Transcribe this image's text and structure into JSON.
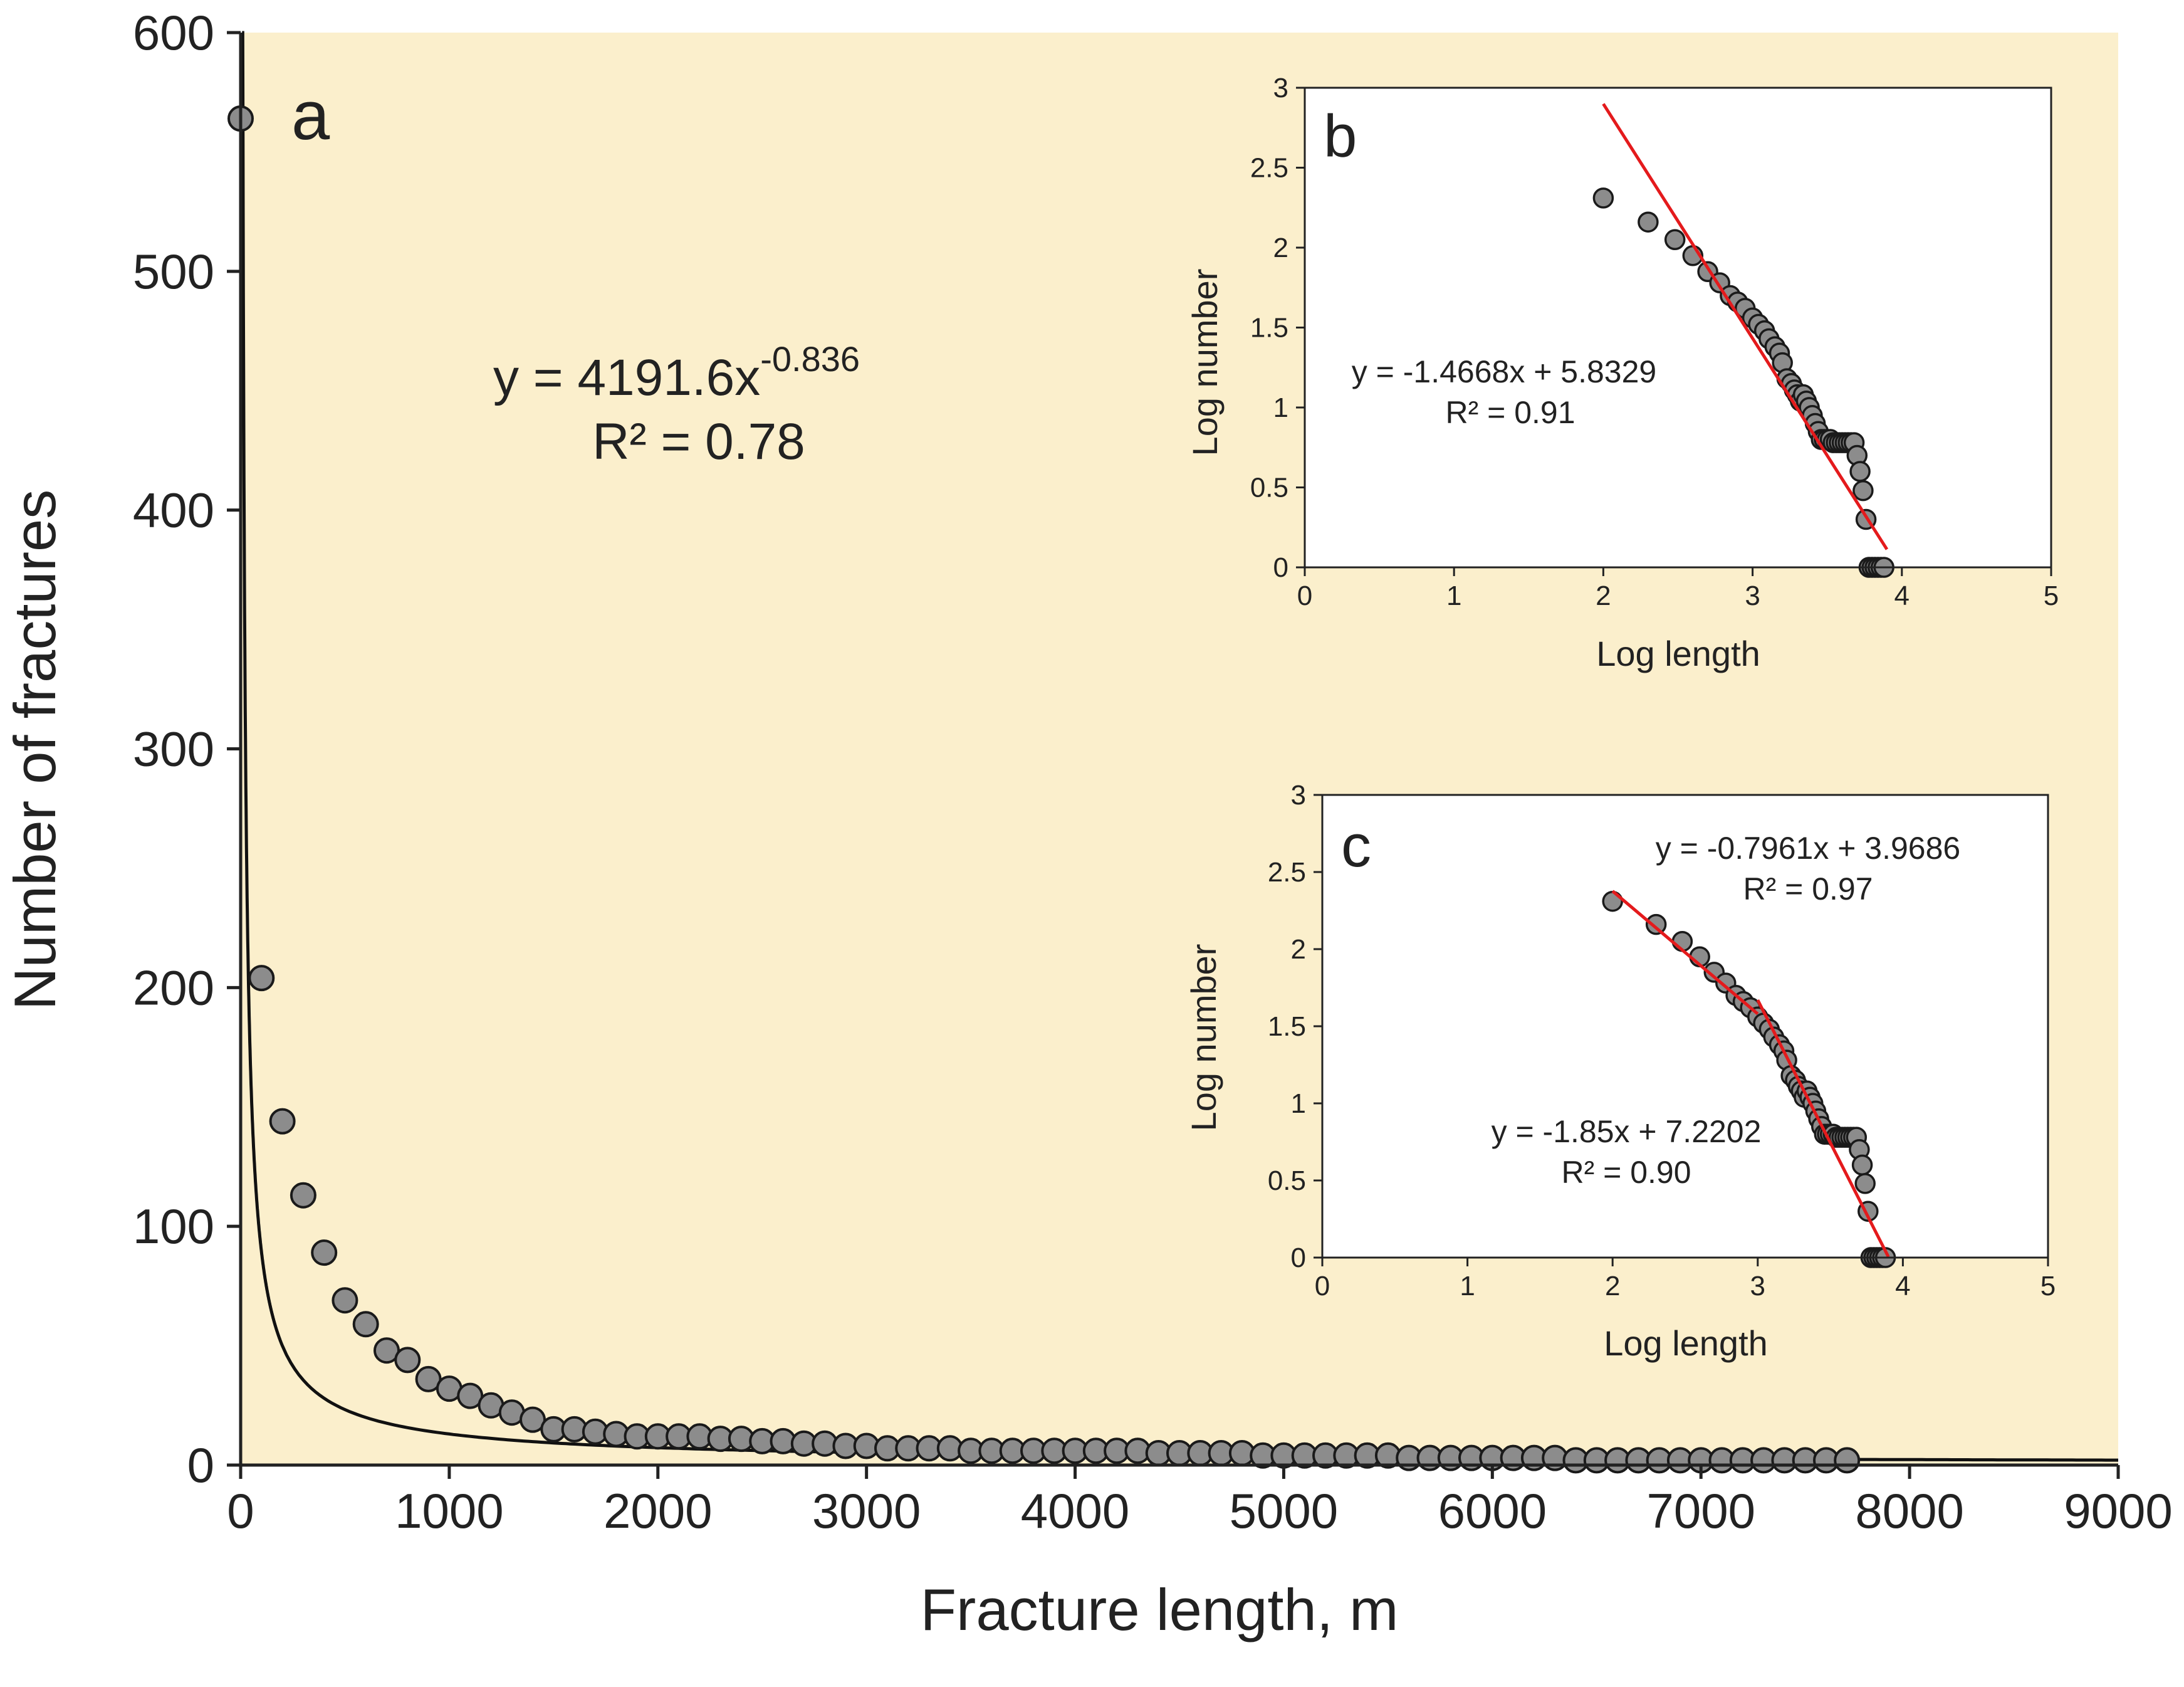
{
  "colors": {
    "plot_background": "#fbefcc",
    "marker_fill": "#8c8c8c",
    "marker_edge": "#1a1a1a",
    "power_curve": "#111111",
    "fit_line": "#e41a1c",
    "axis": "#222222"
  },
  "chart_data": [
    {
      "type": "scatter",
      "panel_label": "a",
      "xlabel": "Fracture length, m",
      "ylabel": "Number of fractures",
      "xlim": [
        0,
        9000
      ],
      "ylim": [
        0,
        600
      ],
      "x_ticks": [
        "0",
        "1000",
        "2000",
        "3000",
        "4000",
        "5000",
        "6000",
        "7000",
        "8000",
        "9000"
      ],
      "y_ticks": [
        "0",
        "100",
        "200",
        "300",
        "400",
        "500",
        "600"
      ],
      "grid": false,
      "legend": "none",
      "series": [
        {
          "x": [
            0,
            100,
            200,
            300,
            400,
            500,
            600,
            700,
            800,
            900,
            1000,
            1100,
            1200,
            1300,
            1400,
            1500,
            1600,
            1700,
            1800,
            1900,
            2000,
            2100,
            2200,
            2300,
            2400,
            2500,
            2600,
            2700,
            2800,
            2900,
            3000,
            3100,
            3200,
            3300,
            3400,
            3500,
            3600,
            3700,
            3800,
            3900,
            4000,
            4100,
            4200,
            4300,
            4400,
            4500,
            4600,
            4700,
            4800,
            4900,
            5000,
            5100,
            5200,
            5300,
            5400,
            5500,
            5600,
            5700,
            5800,
            5900,
            6000,
            6100,
            6200,
            6300,
            6400,
            6500,
            6600,
            6700,
            6800,
            6900,
            7000,
            7100,
            7200,
            7300,
            7400,
            7500,
            7600,
            7700
          ],
          "y": [
            564,
            204,
            144,
            113,
            89,
            69,
            59,
            48,
            44,
            36,
            32,
            29,
            25,
            22,
            19,
            15,
            15,
            14,
            13,
            12,
            12,
            12,
            12,
            11,
            11,
            10,
            10,
            9,
            9,
            8,
            8,
            7,
            7,
            7,
            7,
            6,
            6,
            6,
            6,
            6,
            6,
            6,
            6,
            6,
            5,
            5,
            5,
            5,
            5,
            4,
            4,
            4,
            4,
            4,
            4,
            4,
            3,
            3,
            3,
            3,
            3,
            3,
            3,
            3,
            2,
            2,
            2,
            2,
            2,
            2,
            2,
            2,
            2,
            2,
            2,
            2,
            2,
            2
          ]
        }
      ],
      "fit": {
        "equation_prefix": "y = 4191.6x",
        "exponent": "-0.836",
        "a": 4191.6,
        "b": -0.836,
        "r2_text": "R² = 0.78"
      }
    },
    {
      "type": "scatter",
      "panel_label": "b",
      "xlabel": "Log length",
      "ylabel": "Log number",
      "xlim": [
        0,
        5
      ],
      "ylim": [
        0,
        3
      ],
      "x_ticks": [
        "0",
        "1",
        "2",
        "3",
        "4",
        "5"
      ],
      "y_ticks": [
        "0",
        "0.5",
        "1",
        "1.5",
        "2",
        "2.5",
        "3"
      ],
      "grid": false,
      "legend": "none",
      "series": [
        {
          "x": [
            2.0,
            2.3,
            2.48,
            2.6,
            2.7,
            2.78,
            2.85,
            2.9,
            2.95,
            3.0,
            3.04,
            3.08,
            3.11,
            3.15,
            3.18,
            3.2,
            3.23,
            3.26,
            3.28,
            3.3,
            3.32,
            3.34,
            3.36,
            3.38,
            3.4,
            3.42,
            3.44,
            3.46,
            3.48,
            3.5,
            3.52,
            3.54,
            3.56,
            3.58,
            3.6,
            3.62,
            3.64,
            3.66,
            3.68,
            3.7,
            3.72,
            3.74,
            3.76,
            3.78,
            3.8,
            3.82,
            3.84,
            3.86,
            3.88
          ],
          "y": [
            2.31,
            2.16,
            2.05,
            1.95,
            1.85,
            1.78,
            1.7,
            1.66,
            1.62,
            1.56,
            1.52,
            1.48,
            1.43,
            1.38,
            1.34,
            1.28,
            1.18,
            1.15,
            1.11,
            1.08,
            1.04,
            1.08,
            1.04,
            1.0,
            0.95,
            0.9,
            0.85,
            0.8,
            0.8,
            0.8,
            0.8,
            0.78,
            0.78,
            0.78,
            0.78,
            0.78,
            0.78,
            0.78,
            0.78,
            0.7,
            0.6,
            0.48,
            0.3,
            0.0,
            0.0,
            0.0,
            0.0,
            0.0,
            0.0
          ]
        }
      ],
      "fits": [
        {
          "slope": -1.4668,
          "intercept": 5.8329,
          "x_range": [
            2.0,
            3.9
          ],
          "equation_text": "y = -1.4668x + 5.8329",
          "r2_text": "R² = 0.91"
        }
      ]
    },
    {
      "type": "scatter",
      "panel_label": "c",
      "xlabel": "Log length",
      "ylabel": "Log number",
      "xlim": [
        0,
        5
      ],
      "ylim": [
        0,
        3
      ],
      "x_ticks": [
        "0",
        "1",
        "2",
        "3",
        "4",
        "5"
      ],
      "y_ticks": [
        "0",
        "0.5",
        "1",
        "1.5",
        "2",
        "2.5",
        "3"
      ],
      "grid": false,
      "legend": "none",
      "series": [
        {
          "x": [
            2.0,
            2.3,
            2.48,
            2.6,
            2.7,
            2.78,
            2.85,
            2.9,
            2.95,
            3.0,
            3.04,
            3.08,
            3.11,
            3.15,
            3.18,
            3.2,
            3.23,
            3.26,
            3.28,
            3.3,
            3.32,
            3.34,
            3.36,
            3.38,
            3.4,
            3.42,
            3.44,
            3.46,
            3.48,
            3.5,
            3.52,
            3.54,
            3.56,
            3.58,
            3.6,
            3.62,
            3.64,
            3.66,
            3.68,
            3.7,
            3.72,
            3.74,
            3.76,
            3.78,
            3.8,
            3.82,
            3.84,
            3.86,
            3.88
          ],
          "y": [
            2.31,
            2.16,
            2.05,
            1.95,
            1.85,
            1.78,
            1.7,
            1.66,
            1.62,
            1.56,
            1.52,
            1.48,
            1.43,
            1.38,
            1.34,
            1.28,
            1.18,
            1.15,
            1.11,
            1.08,
            1.04,
            1.08,
            1.04,
            1.0,
            0.95,
            0.9,
            0.85,
            0.8,
            0.8,
            0.8,
            0.8,
            0.78,
            0.78,
            0.78,
            0.78,
            0.78,
            0.78,
            0.78,
            0.78,
            0.7,
            0.6,
            0.48,
            0.3,
            0.0,
            0.0,
            0.0,
            0.0,
            0.0,
            0.0
          ]
        }
      ],
      "fits": [
        {
          "slope": -0.7961,
          "intercept": 3.9686,
          "x_range": [
            2.0,
            3.0
          ],
          "equation_text": "y = -0.7961x + 3.9686",
          "r2_text": "R² = 0.97"
        },
        {
          "slope": -1.85,
          "intercept": 7.2202,
          "x_range": [
            3.0,
            3.9
          ],
          "equation_text": "y = -1.85x + 7.2202",
          "r2_text": "R² = 0.90"
        }
      ]
    }
  ]
}
